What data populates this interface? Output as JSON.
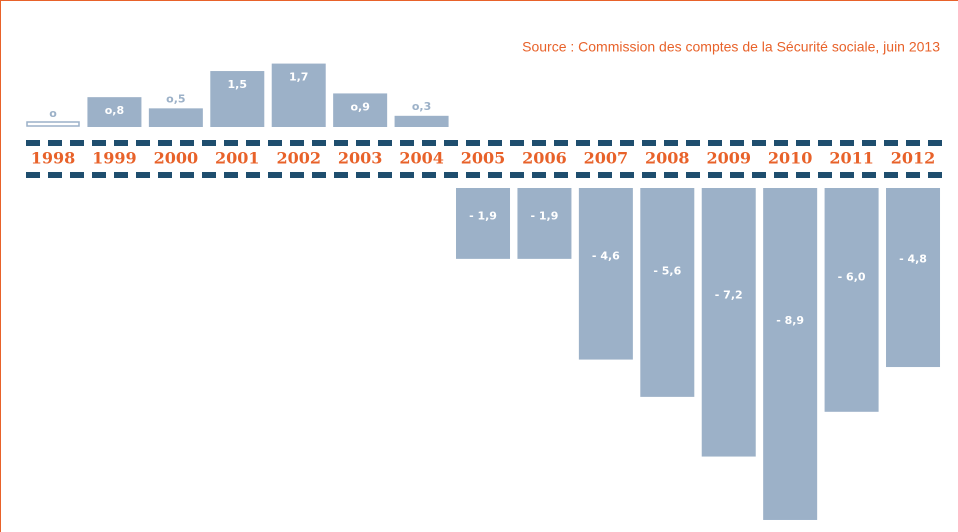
{
  "chart_data": {
    "type": "bar",
    "source": "Source : Commission des comptes de la Sécurité sociale, juin 2013",
    "categories": [
      "1998",
      "1999",
      "2000",
      "2001",
      "2002",
      "2003",
      "2004",
      "2005",
      "2006",
      "2007",
      "2008",
      "2009",
      "2010",
      "2011",
      "2012"
    ],
    "values": [
      0,
      0.8,
      0.5,
      1.5,
      1.7,
      0.9,
      0.3,
      -1.9,
      -1.9,
      -4.6,
      -5.6,
      -7.2,
      -8.9,
      -6.0,
      -4.8
    ],
    "value_labels": [
      "o",
      "o,8",
      "o,5",
      "1,5",
      "1,7",
      "o,9",
      "o,3",
      "- 1,9",
      "- 1,9",
      "- 4,6",
      "- 5,6",
      "- 7,2",
      "- 8,9",
      "- 6,0",
      "- 4,8"
    ],
    "color": "#9cb1c8"
  }
}
